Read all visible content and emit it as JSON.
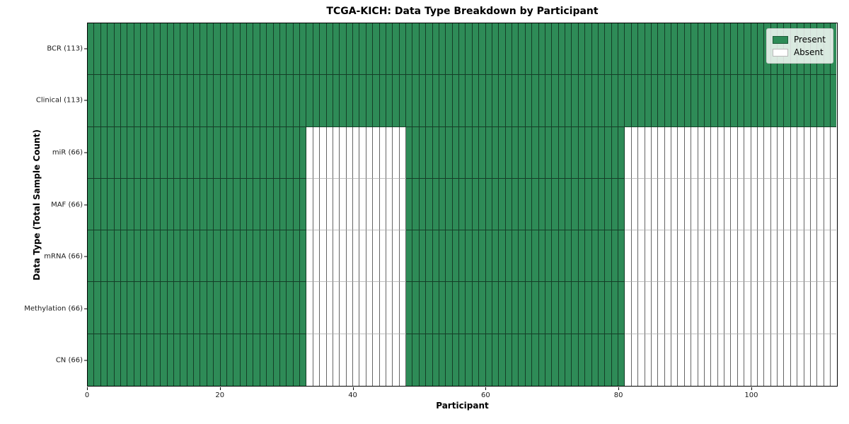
{
  "chart_data": {
    "type": "heatmap",
    "title": "TCGA-KICH: Data Type Breakdown by Participant",
    "xlabel": "Participant",
    "ylabel": "Data Type (Total Sample Count)",
    "n_participants": 113,
    "xlim": [
      0,
      113
    ],
    "x_ticks": [
      0,
      20,
      40,
      60,
      80,
      100
    ],
    "grid": false,
    "colors": {
      "present": "#2e8b57",
      "absent": "#ffffff",
      "cell_edge": "rgba(0,0,0,0.55)",
      "plot_border": "#000000"
    },
    "legend": {
      "position": "upper right",
      "entries": [
        {
          "label": "Present",
          "color": "#2e8b57"
        },
        {
          "label": "Absent",
          "color": "#ffffff"
        }
      ]
    },
    "rows": [
      {
        "label": "BCR (113)",
        "present_count": 113,
        "runs": [
          {
            "state": "present",
            "count": 113
          }
        ]
      },
      {
        "label": "Clinical (113)",
        "present_count": 113,
        "runs": [
          {
            "state": "present",
            "count": 113
          }
        ]
      },
      {
        "label": "miR (66)",
        "present_count": 66,
        "runs": [
          {
            "state": "present",
            "count": 33
          },
          {
            "state": "absent",
            "count": 15
          },
          {
            "state": "present",
            "count": 33
          },
          {
            "state": "absent",
            "count": 32
          }
        ]
      },
      {
        "label": "MAF (66)",
        "present_count": 66,
        "runs": [
          {
            "state": "present",
            "count": 33
          },
          {
            "state": "absent",
            "count": 15
          },
          {
            "state": "present",
            "count": 33
          },
          {
            "state": "absent",
            "count": 32
          }
        ]
      },
      {
        "label": "mRNA (66)",
        "present_count": 66,
        "runs": [
          {
            "state": "present",
            "count": 33
          },
          {
            "state": "absent",
            "count": 15
          },
          {
            "state": "present",
            "count": 33
          },
          {
            "state": "absent",
            "count": 32
          }
        ]
      },
      {
        "label": "Methylation (66)",
        "present_count": 66,
        "runs": [
          {
            "state": "present",
            "count": 33
          },
          {
            "state": "absent",
            "count": 15
          },
          {
            "state": "present",
            "count": 33
          },
          {
            "state": "absent",
            "count": 32
          }
        ]
      },
      {
        "label": "CN (66)",
        "present_count": 66,
        "runs": [
          {
            "state": "present",
            "count": 33
          },
          {
            "state": "absent",
            "count": 15
          },
          {
            "state": "present",
            "count": 33
          },
          {
            "state": "absent",
            "count": 32
          }
        ]
      }
    ]
  }
}
